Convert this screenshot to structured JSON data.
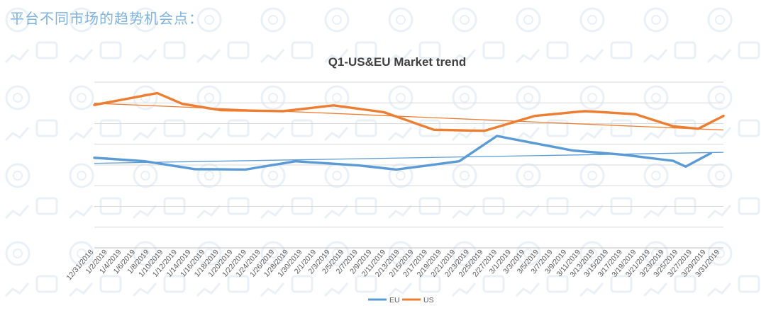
{
  "page": {
    "heading": "平台不同市场的趋势机会点："
  },
  "colors": {
    "eu": "#5b9bd5",
    "us": "#ed7d31",
    "grid": "#d9d9d9",
    "heading": "#7fb2dc",
    "watermark": "#e7eff7"
  },
  "chart_data": {
    "type": "line",
    "title": "Q1-US&EU Market trend",
    "xlabel": "",
    "ylabel": "",
    "ylim": [
      0,
      8
    ],
    "grid": true,
    "legend_position": "bottom-center",
    "categories": [
      "12/31/2018",
      "1/2/2019",
      "1/4/2019",
      "1/6/2019",
      "1/8/2019",
      "1/10/2019",
      "1/12/2019",
      "1/14/2019",
      "1/16/2019",
      "1/18/2019",
      "1/20/2019",
      "1/22/2019",
      "1/24/2019",
      "1/26/2019",
      "1/28/2019",
      "1/30/2019",
      "2/1/2019",
      "2/3/2019",
      "2/5/2019",
      "2/7/2019",
      "2/9/2019",
      "2/11/2019",
      "2/13/2019",
      "2/15/2019",
      "2/17/2019",
      "2/19/2019",
      "2/21/2019",
      "2/23/2019",
      "2/25/2019",
      "2/27/2019",
      "3/1/2019",
      "3/3/2019",
      "3/5/2019",
      "3/7/2019",
      "3/9/2019",
      "3/11/2019",
      "3/13/2019",
      "3/15/2019",
      "3/17/2019",
      "3/19/2019",
      "3/21/2019",
      "3/23/2019",
      "3/25/2019",
      "3/27/2019",
      "3/29/2019",
      "3/31/2019"
    ],
    "series": [
      {
        "name": "EU",
        "color": "#5b9bd5",
        "anchors": [
          [
            0,
            4.35
          ],
          [
            4,
            4.18
          ],
          [
            8,
            3.8
          ],
          [
            12,
            3.78
          ],
          [
            16,
            4.18
          ],
          [
            21,
            3.98
          ],
          [
            24,
            3.78
          ],
          [
            29,
            4.18
          ],
          [
            32,
            5.4
          ],
          [
            35,
            5.05
          ],
          [
            38,
            4.7
          ],
          [
            42,
            4.5
          ],
          [
            44,
            4.35
          ],
          [
            46,
            4.2
          ],
          [
            47,
            3.92
          ],
          [
            49,
            4.57
          ]
        ],
        "trendline": [
          4.08,
          4.61
        ]
      },
      {
        "name": "US",
        "color": "#ed7d31",
        "anchors": [
          [
            0,
            6.9
          ],
          [
            5,
            7.47
          ],
          [
            7,
            6.95
          ],
          [
            10,
            6.65
          ],
          [
            15,
            6.6
          ],
          [
            19,
            6.88
          ],
          [
            23,
            6.55
          ],
          [
            27,
            5.7
          ],
          [
            31,
            5.65
          ],
          [
            35,
            6.37
          ],
          [
            39,
            6.6
          ],
          [
            43,
            6.45
          ],
          [
            46,
            5.87
          ],
          [
            48,
            5.75
          ],
          [
            50,
            6.37
          ]
        ],
        "trendline": [
          6.98,
          5.69
        ]
      }
    ]
  }
}
